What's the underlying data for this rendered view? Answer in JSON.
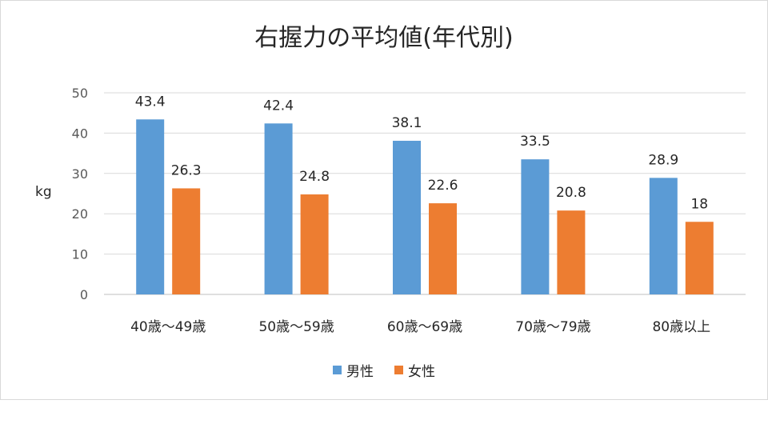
{
  "chart_data": {
    "type": "bar",
    "title": "右握力の平均値(年代別)",
    "xlabel": "",
    "ylabel": "kg",
    "ylim": [
      0,
      50
    ],
    "yticks": [
      0,
      10,
      20,
      30,
      40,
      50
    ],
    "categories": [
      "40歳～49歳",
      "50歳～59歳",
      "60歳～69歳",
      "70歳～79歳",
      "80歳以上"
    ],
    "series": [
      {
        "name": "男性",
        "color": "#5b9bd5",
        "values": [
          43.4,
          42.4,
          38.1,
          33.5,
          28.9
        ],
        "labels": [
          "43.4",
          "42.4",
          "38.1",
          "33.5",
          "28.9"
        ]
      },
      {
        "name": "女性",
        "color": "#ed7d31",
        "values": [
          26.3,
          24.8,
          22.6,
          20.8,
          18
        ],
        "labels": [
          "26.3",
          "24.8",
          "22.6",
          "20.8",
          "18"
        ]
      }
    ],
    "grid": true,
    "legend_position": "bottom"
  }
}
